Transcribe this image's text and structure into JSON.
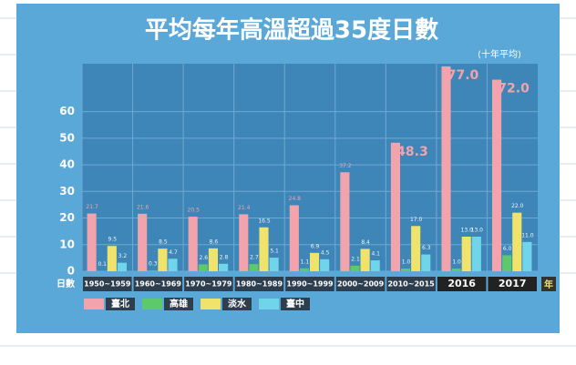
{
  "chart_data": {
    "type": "bar",
    "title": "平均每年高溫超過35度日數",
    "subtitle": "(十年平均)",
    "y_label": "日數",
    "x_label": "年",
    "categories": [
      "1950~1959",
      "1960~1969",
      "1970~1979",
      "1980~1989",
      "1990~1999",
      "2000~2009",
      "2010~2015",
      "2016",
      "2017"
    ],
    "series": [
      {
        "name": "臺北",
        "color": "#f2a3ab",
        "values": [
          21.7,
          21.6,
          20.5,
          21.4,
          24.8,
          37.2,
          48.3,
          77.0,
          72.0
        ],
        "value_labels": [
          "21.7",
          "21.6",
          "20.5",
          "21.4",
          "24.8",
          "37.2",
          "48.3",
          "77.0",
          "72.0"
        ]
      },
      {
        "name": "高雄",
        "color": "#5cc96b",
        "values": [
          0.1,
          0.3,
          2.6,
          2.7,
          1.1,
          2.1,
          1.0,
          1.0,
          6.0
        ],
        "value_labels": [
          "0.1",
          "0.3",
          "2.6",
          "2.7",
          "1.1",
          "2.1",
          "1.0",
          "1.0",
          "6.0"
        ]
      },
      {
        "name": "淡水",
        "color": "#efe36b",
        "values": [
          9.5,
          8.5,
          8.6,
          16.5,
          6.9,
          8.4,
          17.0,
          13.0,
          22.0
        ],
        "value_labels": [
          "9.5",
          "8.5",
          "8.6",
          "16.5",
          "6.9",
          "8.4",
          "17.0",
          "13.0",
          "22.0"
        ]
      },
      {
        "name": "臺中",
        "color": "#70d4ea",
        "values": [
          3.2,
          4.7,
          2.8,
          5.1,
          4.5,
          4.1,
          6.3,
          13.0,
          11.0
        ],
        "value_labels": [
          "3.2",
          "4.7",
          "2.8",
          "5.1",
          "4.5",
          "4.1",
          "6.3",
          "13.0",
          "11.0"
        ]
      }
    ],
    "ylim": [
      0,
      78
    ],
    "yticks": [
      0,
      10,
      20,
      30,
      40,
      50,
      60
    ],
    "grid": true
  }
}
